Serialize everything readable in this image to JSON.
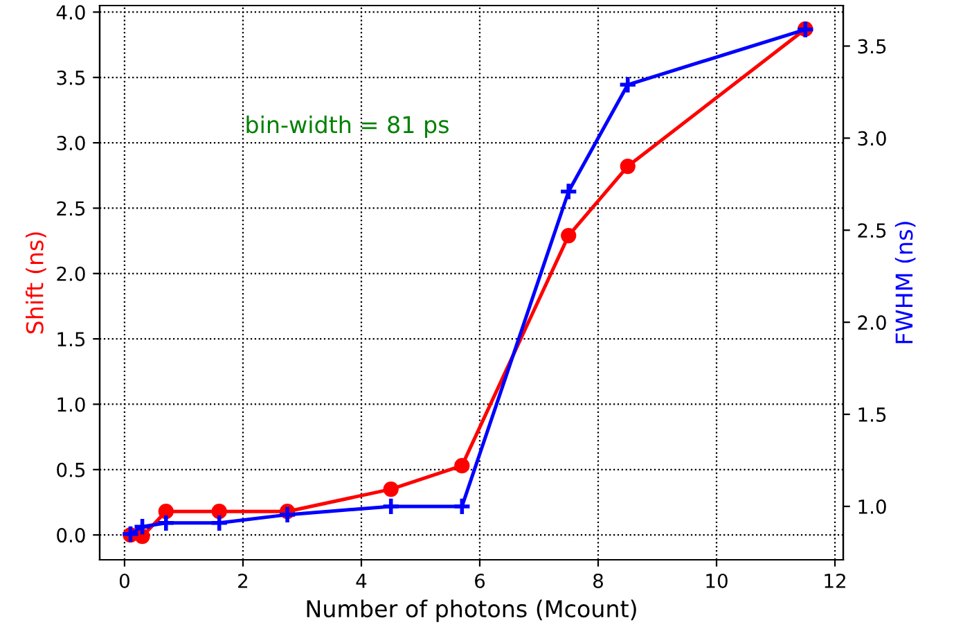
{
  "chart_data": {
    "type": "line",
    "xlabel": "Number of photons (Mcount)",
    "ylabel": "Shift (ns)",
    "y2label": "FWHM (ns)",
    "annotations": [
      "bin-width = 81 ps"
    ],
    "x": [
      0.1,
      0.3,
      0.7,
      1.6,
      2.75,
      4.5,
      5.7,
      7.5,
      8.5,
      11.5
    ],
    "series": [
      {
        "color": "#ff0000",
        "marker": "circle",
        "values": [
          0.0,
          -0.01,
          0.18,
          0.18,
          0.18,
          0.35,
          0.53,
          2.29,
          2.82,
          3.87
        ],
        "errors": [
          0.03,
          0.03,
          0.03,
          0.03,
          0.03,
          0.03,
          0.03,
          0.03,
          0.03,
          0.03
        ]
      },
      {
        "color": "#0000ff",
        "marker": "cross",
        "axis": "y2",
        "values": [
          0.85,
          0.89,
          0.91,
          0.91,
          0.955,
          1.0,
          1.0,
          2.71,
          3.29,
          3.59
        ],
        "errors": [
          0.04,
          0.04,
          0.04,
          0.04,
          0.04,
          0.04,
          0.04,
          0.04,
          0.04,
          0.04
        ]
      }
    ],
    "xlim": [
      -0.42,
      12.14
    ],
    "xticks": [
      0,
      2,
      4,
      6,
      8,
      10,
      12
    ],
    "ylim": [
      -0.19,
      4.05
    ],
    "yticks": [
      {
        "value": 0,
        "label": "0.0"
      },
      0.5,
      {
        "value": 1,
        "label": "1.0"
      },
      1.5,
      {
        "value": 2,
        "label": "2.0"
      },
      2.5,
      {
        "value": 3,
        "label": "3.0"
      },
      3.5,
      {
        "value": 4,
        "label": "4.0"
      }
    ],
    "y2lim": [
      0.71,
      3.72
    ],
    "y2ticks": [
      {
        "value": 1,
        "label": "1.0"
      },
      1.5,
      {
        "value": 2,
        "label": "2.0"
      },
      2.5,
      {
        "value": 3,
        "label": "3.0"
      },
      3.5
    ],
    "grid": true
  }
}
